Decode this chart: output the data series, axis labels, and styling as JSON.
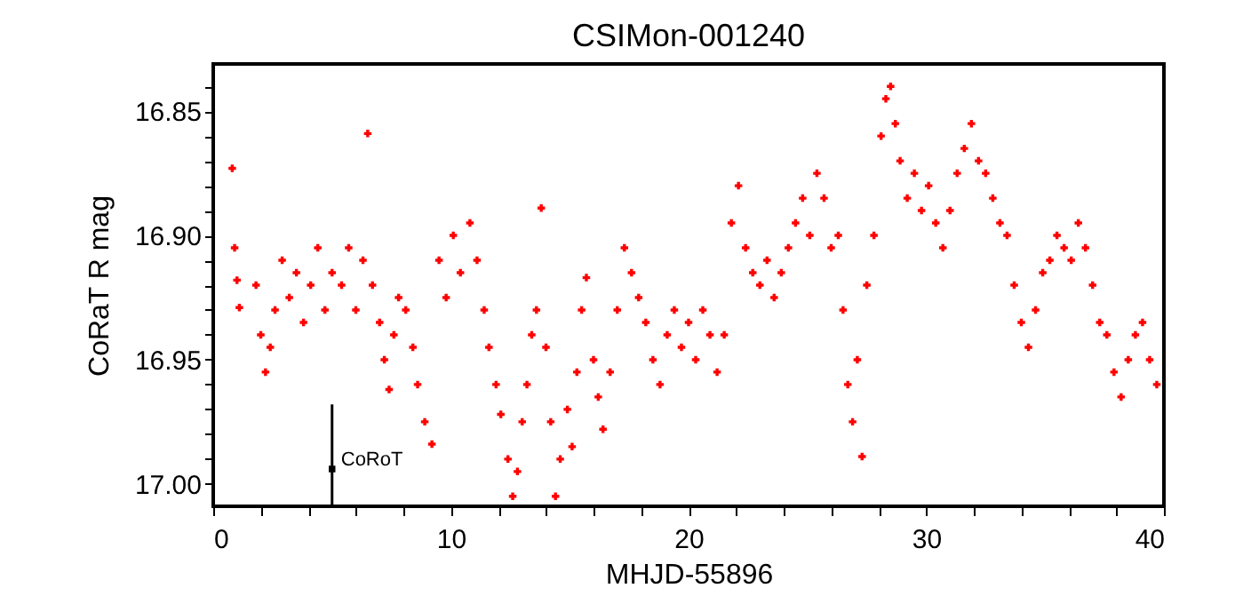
{
  "chart_data": {
    "type": "scatter",
    "title": "CSIMon-001240",
    "xlabel": "MHJD-55896",
    "ylabel": "CoRaT R mag",
    "xlim": [
      0,
      40
    ],
    "ylim": [
      17.009,
      16.831
    ],
    "xticks": [
      0,
      {
        "value": 2,
        "label": null
      },
      {
        "value": 4,
        "label": null
      },
      {
        "value": 6,
        "label": null
      },
      {
        "value": 8,
        "label": null
      },
      10,
      {
        "value": 12,
        "label": null
      },
      {
        "value": 14,
        "label": null
      },
      {
        "value": 16,
        "label": null
      },
      {
        "value": 18,
        "label": null
      },
      20,
      {
        "value": 22,
        "label": null
      },
      {
        "value": 24,
        "label": null
      },
      {
        "value": 26,
        "label": null
      },
      {
        "value": 28,
        "label": null
      },
      30,
      {
        "value": 32,
        "label": null
      },
      {
        "value": 34,
        "label": null
      },
      {
        "value": 36,
        "label": null
      },
      {
        "value": 38,
        "label": null
      },
      40
    ],
    "yticks": [
      {
        "value": 17.0,
        "label": "17.00"
      },
      {
        "value": 16.99,
        "label": null
      },
      {
        "value": 16.98,
        "label": null
      },
      {
        "value": 16.97,
        "label": null
      },
      {
        "value": 16.96,
        "label": null
      },
      16.95,
      {
        "value": 16.94,
        "label": null
      },
      {
        "value": 16.93,
        "label": null
      },
      {
        "value": 16.92,
        "label": null
      },
      {
        "value": 16.91,
        "label": null
      },
      {
        "value": 16.9,
        "label": "16.90"
      },
      {
        "value": 16.89,
        "label": null
      },
      {
        "value": 16.88,
        "label": null
      },
      {
        "value": 16.87,
        "label": null
      },
      {
        "value": 16.86,
        "label": null
      },
      16.85,
      {
        "value": 16.84,
        "label": null
      }
    ],
    "grid": false,
    "marker": "cross",
    "series": [
      {
        "color": "#ff0000",
        "x": [
          0.8,
          0.9,
          1.0,
          1.1,
          1.8,
          2.0,
          2.2,
          2.4,
          2.6,
          2.9,
          3.2,
          3.5,
          3.8,
          4.1,
          4.4,
          4.7,
          5.0,
          5.4,
          5.7,
          6.0,
          6.3,
          6.5,
          6.7,
          7.0,
          7.2,
          7.4,
          7.6,
          7.8,
          8.1,
          8.4,
          8.6,
          8.9,
          9.2,
          9.5,
          9.8,
          10.1,
          10.4,
          10.8,
          11.1,
          11.4,
          11.6,
          11.9,
          12.1,
          12.4,
          12.6,
          12.8,
          13.0,
          13.2,
          13.4,
          13.6,
          13.8,
          14.0,
          14.2,
          14.4,
          14.6,
          14.9,
          15.1,
          15.3,
          15.5,
          15.7,
          16.0,
          16.2,
          16.4,
          16.7,
          17.0,
          17.3,
          17.6,
          17.9,
          18.2,
          18.5,
          18.8,
          19.1,
          19.4,
          19.7,
          20.0,
          20.3,
          20.6,
          20.9,
          21.2,
          21.5,
          21.8,
          22.1,
          22.4,
          22.7,
          23.0,
          23.3,
          23.6,
          23.9,
          24.2,
          24.5,
          24.8,
          25.1,
          25.4,
          25.7,
          26.0,
          26.3,
          26.5,
          26.7,
          26.9,
          27.1,
          27.3,
          27.5,
          27.8,
          28.1,
          28.3,
          28.5,
          28.7,
          28.9,
          29.2,
          29.5,
          29.8,
          30.1,
          30.4,
          30.7,
          31.0,
          31.3,
          31.6,
          31.9,
          32.2,
          32.5,
          32.8,
          33.1,
          33.4,
          33.7,
          34.0,
          34.3,
          34.6,
          34.9,
          35.2,
          35.5,
          35.8,
          36.1,
          36.4,
          36.7,
          37.0,
          37.3,
          37.6,
          37.9,
          38.2,
          38.5,
          38.8,
          39.1,
          39.4,
          39.7
        ],
        "values": [
          16.873,
          16.905,
          16.918,
          16.929,
          16.92,
          16.94,
          16.955,
          16.945,
          16.93,
          16.91,
          16.925,
          16.915,
          16.935,
          16.92,
          16.905,
          16.93,
          16.915,
          16.92,
          16.905,
          16.93,
          16.91,
          16.859,
          16.92,
          16.935,
          16.95,
          16.962,
          16.94,
          16.925,
          16.93,
          16.945,
          16.96,
          16.975,
          16.984,
          16.91,
          16.925,
          16.9,
          16.915,
          16.895,
          16.91,
          16.93,
          16.945,
          16.96,
          16.972,
          16.99,
          17.005,
          16.995,
          16.975,
          16.96,
          16.94,
          16.93,
          16.889,
          16.945,
          16.975,
          17.005,
          16.99,
          16.97,
          16.985,
          16.955,
          16.93,
          16.917,
          16.95,
          16.965,
          16.978,
          16.955,
          16.93,
          16.905,
          16.915,
          16.925,
          16.935,
          16.95,
          16.96,
          16.94,
          16.93,
          16.945,
          16.935,
          16.95,
          16.93,
          16.94,
          16.955,
          16.94,
          16.895,
          16.88,
          16.905,
          16.915,
          16.92,
          16.91,
          16.925,
          16.915,
          16.905,
          16.895,
          16.885,
          16.9,
          16.875,
          16.885,
          16.905,
          16.9,
          16.93,
          16.96,
          16.975,
          16.95,
          16.989,
          16.92,
          16.9,
          16.86,
          16.845,
          16.84,
          16.855,
          16.87,
          16.885,
          16.875,
          16.89,
          16.88,
          16.895,
          16.905,
          16.89,
          16.875,
          16.865,
          16.855,
          16.87,
          16.875,
          16.885,
          16.895,
          16.9,
          16.92,
          16.935,
          16.945,
          16.93,
          16.915,
          16.91,
          16.9,
          16.905,
          16.91,
          16.895,
          16.905,
          16.92,
          16.935,
          16.94,
          16.955,
          16.965,
          16.95,
          16.94,
          16.935,
          16.95,
          16.96
        ]
      },
      {
        "name": "CoRoT",
        "color": "#000000",
        "marker": "square",
        "x": [
          5
        ],
        "values": [
          16.994
        ],
        "errors": [
          [
            16.968,
            17.009
          ]
        ]
      }
    ]
  }
}
